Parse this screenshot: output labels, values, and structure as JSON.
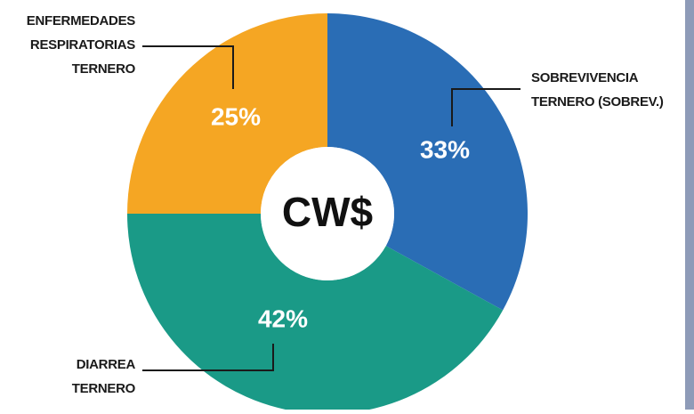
{
  "chart_data": {
    "type": "donut",
    "center_label": "CW$",
    "categories": [
      [
        "SOBREVIVENCIA",
        "TERNERO (SOBREV.)"
      ],
      [
        "DIARREA",
        "TERNERO"
      ],
      [
        "ENFERMEDADES",
        "RESPIRATORIAS",
        "TERNERO"
      ]
    ],
    "values": [
      33,
      42,
      25
    ],
    "value_labels": [
      "33%",
      "42%",
      "25%"
    ],
    "colors": [
      "#2a6db5",
      "#1a9a87",
      "#f5a623"
    ]
  }
}
